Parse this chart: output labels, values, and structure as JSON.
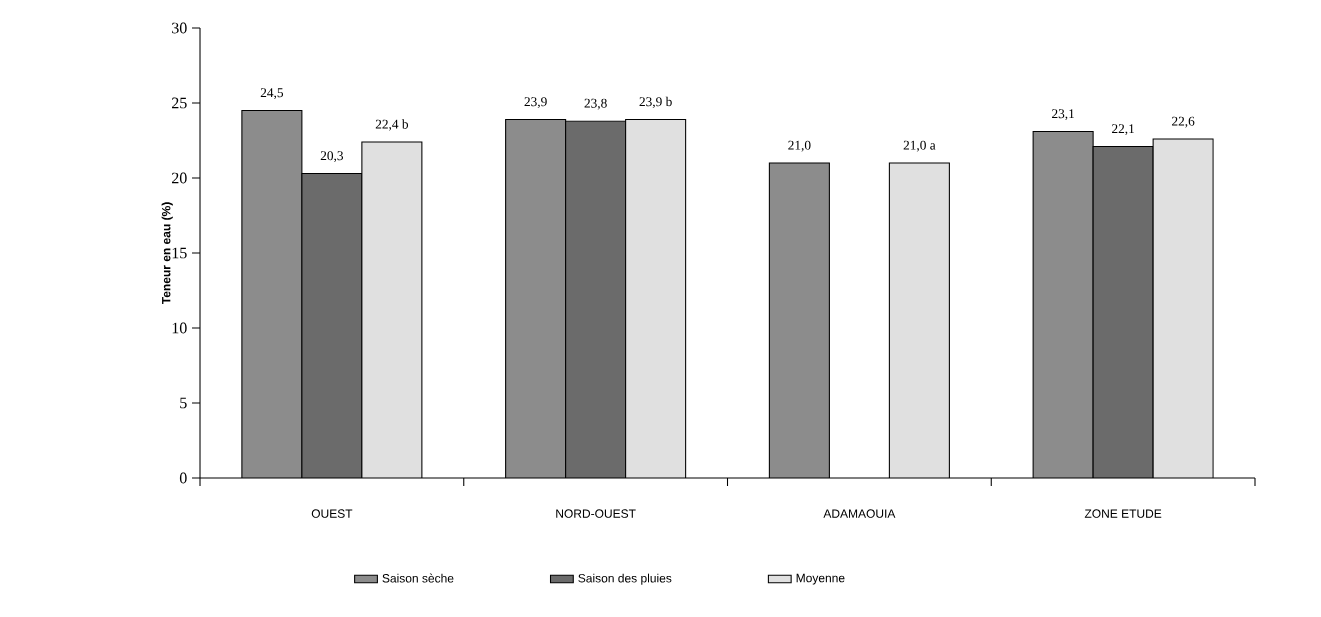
{
  "chart_data": {
    "type": "bar",
    "ylabel": "Teneur en eau (%)",
    "categories": [
      "OUEST",
      "NORD-OUEST",
      "ADAMAOUIA",
      "ZONE ETUDE"
    ],
    "series": [
      {
        "name": "Saison sèche",
        "color": "#8c8c8c",
        "values": [
          24.5,
          23.9,
          21.0,
          23.1
        ],
        "value_labels": [
          "24,5",
          "23,9",
          "21,0",
          "23,1"
        ]
      },
      {
        "name": "Saison des pluies",
        "color": "#6b6b6b",
        "values": [
          20.3,
          23.8,
          null,
          22.1
        ],
        "value_labels": [
          "20,3",
          "23,8",
          null,
          "22,1"
        ]
      },
      {
        "name": "Moyenne",
        "color": "#e0e0e0",
        "values": [
          22.4,
          23.9,
          21.0,
          22.6
        ],
        "value_labels": [
          "22,4 b",
          "23,9 b",
          "21,0 a",
          "22,6"
        ]
      }
    ],
    "ylim": [
      0,
      30
    ],
    "yticks": [
      0,
      5,
      10,
      15,
      20,
      25,
      30
    ],
    "legend": "bottom"
  }
}
